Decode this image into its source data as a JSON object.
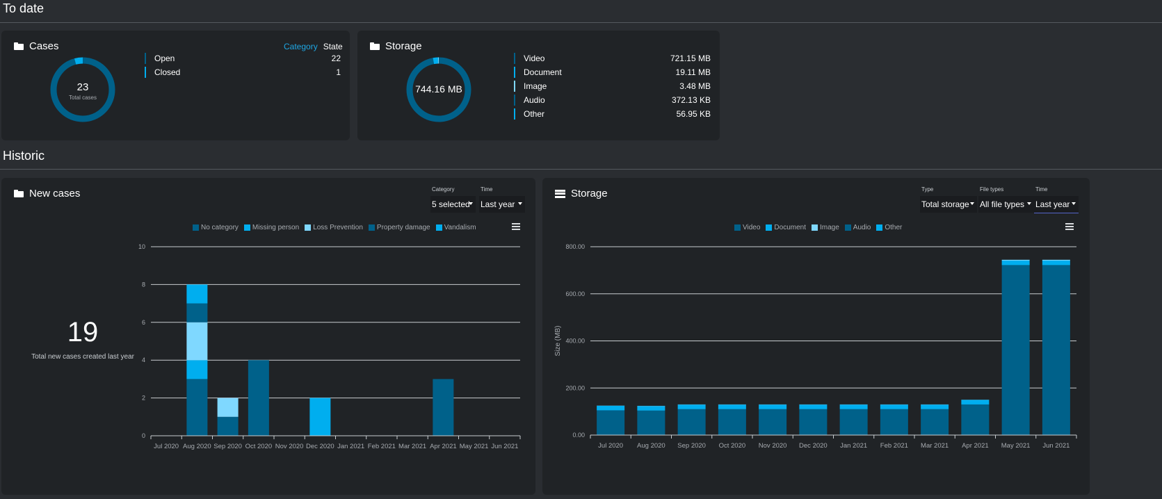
{
  "sections": {
    "to_date": "To date",
    "historic": "Historic"
  },
  "colors": {
    "dark_blue": "#00618a",
    "bright_blue": "#00aeef",
    "light_blue": "#7fd8ff",
    "grid": "#c8ccd0"
  },
  "cases_card": {
    "title": "Cases",
    "icon": "folder-icon",
    "total": "23",
    "total_label": "Total cases",
    "toggle": {
      "category": "Category",
      "state": "State"
    },
    "items": [
      {
        "name": "Open",
        "value": "22",
        "color": "#00618a"
      },
      {
        "name": "Closed",
        "value": "1",
        "color": "#00aeef"
      }
    ],
    "donut": [
      22,
      1
    ]
  },
  "storage_card": {
    "title": "Storage",
    "icon": "folder-icon",
    "total": "744.16 MB",
    "items": [
      {
        "name": "Video",
        "value": "721.15 MB",
        "color": "#00618a"
      },
      {
        "name": "Document",
        "value": "19.11 MB",
        "color": "#00aeef"
      },
      {
        "name": "Image",
        "value": "3.48 MB",
        "color": "#7fd8ff"
      },
      {
        "name": "Audio",
        "value": "372.13 KB",
        "color": "#00618a"
      },
      {
        "name": "Other",
        "value": "56.95 KB",
        "color": "#00aeef"
      }
    ],
    "donut": [
      721.15,
      19.11,
      3.48,
      0.372,
      0.057
    ]
  },
  "new_cases_card": {
    "title": "New cases",
    "icon": "folder-icon",
    "big_number": "19",
    "big_caption": "Total new cases created last year",
    "filters": [
      {
        "label": "Category",
        "value": "5 selected"
      },
      {
        "label": "Time",
        "value": "Last year"
      }
    ],
    "menu_icon": "hamburger-menu-icon"
  },
  "storage_history_card": {
    "title": "Storage",
    "icon": "server-icon",
    "filters": [
      {
        "label": "Type",
        "value": "Total storage"
      },
      {
        "label": "File types",
        "value": "All file types"
      },
      {
        "label": "Time",
        "value": "Last year"
      }
    ],
    "menu_icon": "hamburger-menu-icon"
  },
  "chart_data": [
    {
      "type": "bar",
      "stacked": true,
      "categories": [
        "Jul 2020",
        "Aug 2020",
        "Sep 2020",
        "Oct 2020",
        "Nov 2020",
        "Dec 2020",
        "Jan 2021",
        "Feb 2021",
        "Mar 2021",
        "Apr 2021",
        "May 2021",
        "Jun 2021"
      ],
      "series": [
        {
          "name": "No category",
          "color": "#00618a",
          "values": [
            0,
            3,
            1,
            4,
            0,
            0,
            0,
            0,
            0,
            3,
            0,
            0
          ]
        },
        {
          "name": "Missing person",
          "color": "#00aeef",
          "values": [
            0,
            1,
            0,
            0,
            0,
            2,
            0,
            0,
            0,
            0,
            0,
            0
          ]
        },
        {
          "name": "Loss Prevention",
          "color": "#7fd8ff",
          "values": [
            0,
            2,
            1,
            0,
            0,
            0,
            0,
            0,
            0,
            0,
            0,
            0
          ]
        },
        {
          "name": "Property damage",
          "color": "#00618a",
          "values": [
            0,
            1,
            0,
            0,
            0,
            0,
            0,
            0,
            0,
            0,
            0,
            0
          ]
        },
        {
          "name": "Vandalism",
          "color": "#00aeef",
          "values": [
            0,
            1,
            0,
            0,
            0,
            0,
            0,
            0,
            0,
            0,
            0,
            0
          ]
        }
      ],
      "yticks": [
        "0",
        "2",
        "4",
        "6",
        "8",
        "10"
      ],
      "ylim": [
        0,
        10
      ],
      "grid": true,
      "legend": "top-center"
    },
    {
      "type": "bar",
      "stacked": true,
      "categories": [
        "Jul 2020",
        "Aug 2020",
        "Sep 2020",
        "Oct 2020",
        "Nov 2020",
        "Dec 2020",
        "Jan 2021",
        "Feb 2021",
        "Mar 2021",
        "Apr 2021",
        "May 2021",
        "Jun 2021"
      ],
      "series": [
        {
          "name": "Video",
          "color": "#00618a",
          "values": [
            105,
            104,
            110,
            110,
            110,
            110,
            110,
            110,
            110,
            130,
            722,
            722
          ]
        },
        {
          "name": "Document",
          "color": "#00aeef",
          "values": [
            19,
            19,
            19,
            19,
            19,
            19,
            19,
            19,
            19,
            19,
            19,
            19
          ]
        },
        {
          "name": "Image",
          "color": "#7fd8ff",
          "values": [
            1,
            1,
            1,
            1,
            1,
            1,
            1,
            1,
            1,
            1,
            3.5,
            3.5
          ]
        },
        {
          "name": "Audio",
          "color": "#00618a",
          "values": [
            0.4,
            0.4,
            0.4,
            0.4,
            0.4,
            0.4,
            0.4,
            0.4,
            0.4,
            0.4,
            0.4,
            0.4
          ]
        },
        {
          "name": "Other",
          "color": "#00aeef",
          "values": [
            0.1,
            0.1,
            0.1,
            0.1,
            0.1,
            0.1,
            0.1,
            0.1,
            0.1,
            0.1,
            0.1,
            0.1
          ]
        }
      ],
      "yticks": [
        "0.00",
        "200.00",
        "400.00",
        "600.00",
        "800.00"
      ],
      "ylabel": "Size (MB)",
      "ylim": [
        0,
        800
      ],
      "grid": true,
      "legend": "top-center"
    }
  ]
}
